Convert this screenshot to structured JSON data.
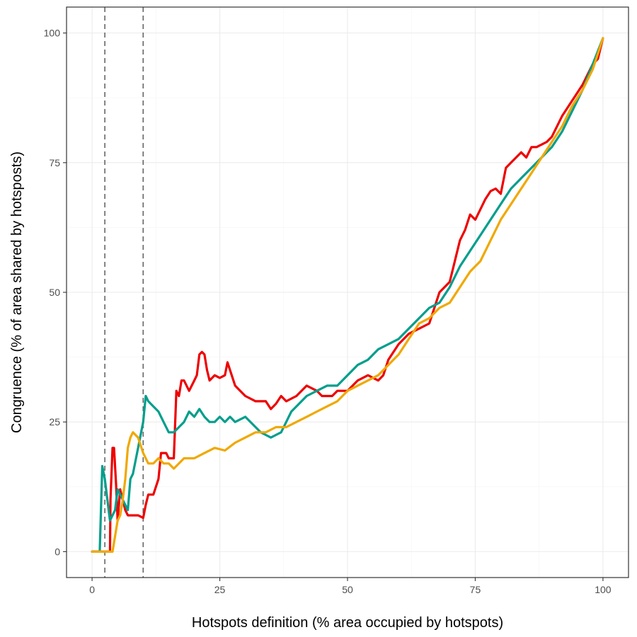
{
  "chart_data": {
    "type": "line",
    "title": "",
    "xlabel": "Hotspots definition (% area occupied by hotspots)",
    "ylabel": "Congruence (% of area shared by hotsposts)",
    "xlim": [
      -5,
      105
    ],
    "ylim": [
      -5,
      105
    ],
    "x_ticks": [
      0,
      25,
      50,
      75,
      100
    ],
    "y_ticks": [
      0,
      25,
      50,
      75,
      100
    ],
    "x_tick_labels": [
      "0",
      "25",
      "50",
      "75",
      "100"
    ],
    "y_tick_labels": [
      "0",
      "25",
      "50",
      "75",
      "100"
    ],
    "grid": true,
    "legend": "none",
    "reference_lines_x": [
      2.5,
      10
    ],
    "series": [
      {
        "color": "#EE0000",
        "x": [
          0,
          3.5,
          3.6,
          4,
          4.3,
          4.7,
          5,
          5.5,
          6,
          6.5,
          7,
          8,
          9,
          10,
          10.5,
          11,
          12,
          13,
          13.5,
          14.5,
          15,
          16,
          16.5,
          17,
          17.5,
          18,
          19,
          20,
          20.5,
          21,
          21.5,
          22,
          22.5,
          23,
          24,
          25,
          26,
          26.5,
          27,
          28,
          29,
          30,
          32,
          34,
          35,
          36,
          37,
          38,
          40,
          42,
          44,
          45,
          47,
          48,
          50,
          51,
          52,
          54,
          56,
          57,
          58,
          60,
          62,
          64,
          66,
          68,
          70,
          71,
          72,
          73,
          74,
          75,
          76,
          77,
          78,
          79,
          80,
          81,
          82,
          83,
          84,
          85,
          86,
          87,
          88,
          89,
          90,
          92,
          94,
          96,
          98,
          99,
          100
        ],
        "y": [
          0,
          0,
          10,
          20,
          20,
          13,
          6,
          12,
          10,
          8,
          7,
          7,
          7,
          6.5,
          9,
          11,
          11,
          14,
          19,
          19,
          18,
          18,
          31,
          30,
          33,
          33,
          31,
          33,
          34,
          38,
          38.5,
          38,
          35,
          33,
          34,
          33.5,
          34,
          36.5,
          35,
          32,
          31,
          30,
          29,
          29,
          27.5,
          28.5,
          30,
          29,
          30,
          32,
          31,
          30,
          30,
          31,
          31,
          32,
          33,
          34,
          33,
          34,
          37,
          40,
          42,
          43,
          44,
          50,
          52,
          56,
          60,
          62,
          65,
          64,
          66,
          68,
          69.5,
          70,
          69,
          74,
          75,
          76,
          77,
          76,
          78,
          78,
          78.5,
          79,
          80,
          84,
          87,
          90,
          94,
          95,
          99
        ]
      },
      {
        "color": "#009E8C",
        "x": [
          0,
          1.5,
          2,
          2.5,
          3,
          3.5,
          4,
          4.5,
          5,
          5.5,
          6,
          6.5,
          7,
          7.5,
          8,
          9,
          10,
          10.5,
          11,
          12,
          13,
          14,
          15,
          16,
          17,
          18,
          19,
          20,
          21,
          22,
          23,
          24,
          25,
          26,
          27,
          28,
          30,
          31,
          32,
          33,
          34,
          35,
          36,
          37,
          38,
          39,
          40,
          42,
          44,
          46,
          48,
          50,
          52,
          54,
          56,
          58,
          60,
          62,
          64,
          66,
          68,
          70,
          72,
          74,
          76,
          78,
          80,
          82,
          84,
          86,
          88,
          90,
          92,
          94,
          96,
          98,
          100
        ],
        "y": [
          0,
          0,
          16.5,
          14,
          10,
          6,
          7,
          8,
          12,
          11,
          10,
          9,
          8,
          14,
          15,
          20,
          25,
          30,
          29,
          28,
          27,
          25,
          23,
          23,
          24,
          25,
          27,
          26,
          27.5,
          26,
          25,
          25,
          26,
          25,
          26,
          25,
          26,
          25,
          24,
          23,
          22.5,
          22,
          22.5,
          23,
          25,
          27,
          28,
          30,
          31,
          32,
          32,
          34,
          36,
          37,
          39,
          40,
          41,
          43,
          45,
          47,
          48,
          51,
          55,
          58,
          61,
          64,
          67,
          70,
          72,
          74,
          76,
          78,
          81,
          85,
          89,
          94,
          99
        ]
      },
      {
        "color": "#F0A800",
        "x": [
          0,
          4,
          4.5,
          5,
          5.5,
          6,
          6.5,
          7,
          7.5,
          8,
          9,
          10,
          11,
          12,
          13,
          14,
          15,
          16,
          17,
          18,
          20,
          22,
          24,
          26,
          28,
          30,
          32,
          34,
          36,
          38,
          40,
          42,
          44,
          46,
          48,
          50,
          52,
          54,
          56,
          58,
          60,
          62,
          64,
          66,
          68,
          70,
          72,
          74,
          76,
          78,
          80,
          82,
          84,
          86,
          88,
          90,
          92,
          94,
          96,
          98,
          100
        ],
        "y": [
          0,
          0,
          3,
          6,
          7,
          10,
          14,
          20,
          22,
          23,
          22,
          19,
          17,
          17,
          18,
          17,
          17,
          16,
          17,
          18,
          18,
          19,
          20,
          19.5,
          21,
          22,
          23,
          23,
          24,
          24,
          25,
          26,
          27,
          28,
          29,
          31,
          32,
          33,
          34,
          36,
          38,
          41,
          44,
          45,
          47,
          48,
          51,
          54,
          56,
          60,
          64,
          67,
          70,
          73,
          76,
          79,
          82,
          86,
          89,
          93,
          99
        ]
      }
    ]
  }
}
